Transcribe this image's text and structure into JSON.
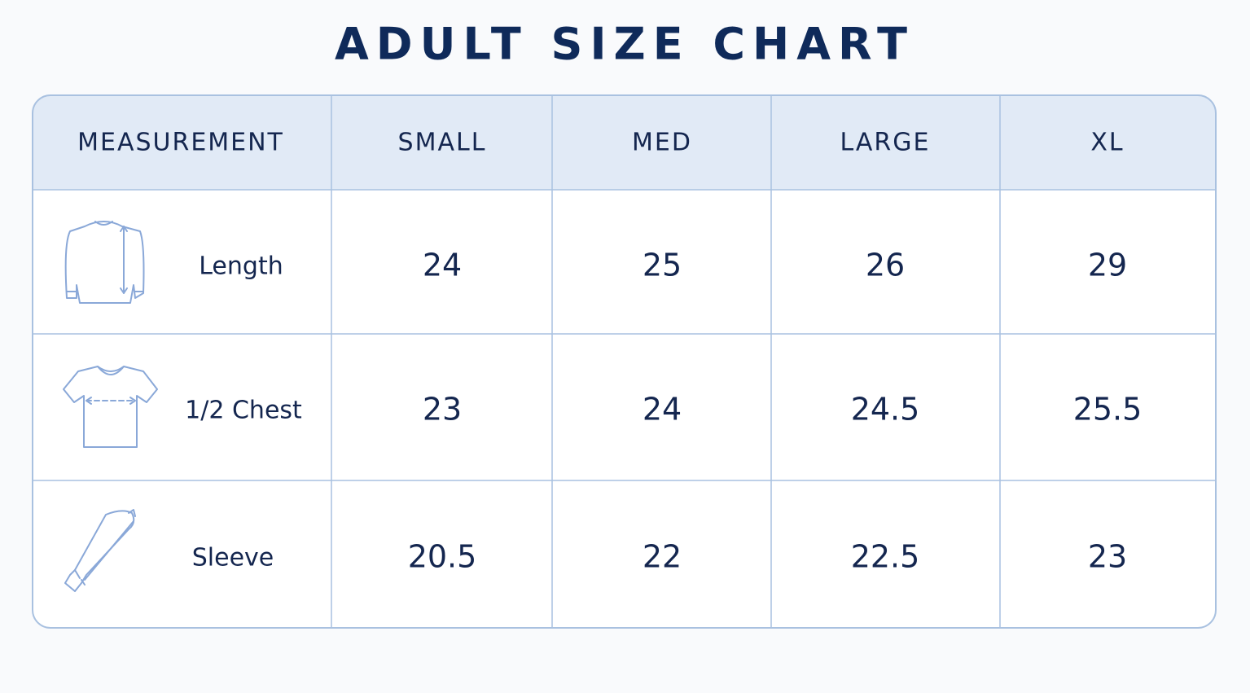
{
  "title": "ADULT SIZE CHART",
  "table": {
    "header": [
      "MEASUREMENT",
      "SMALL",
      "MED",
      "LARGE",
      "XL"
    ],
    "rows": [
      [
        "Length",
        "24",
        "25",
        "26",
        "29"
      ],
      [
        "1/2 Chest",
        "23",
        "24",
        "24.5",
        "25.5"
      ],
      [
        "Sleeve",
        "20.5",
        "22",
        "22.5",
        "23"
      ]
    ]
  }
}
